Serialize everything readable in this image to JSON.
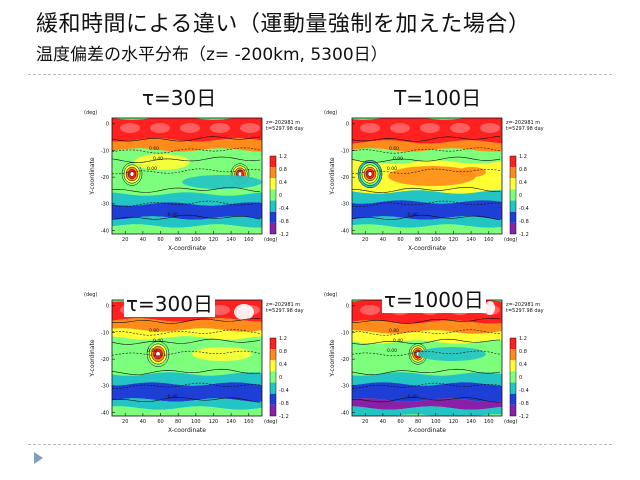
{
  "slide": {
    "title": "緩和時間による違い（運動量強制を加えた場合）",
    "subtitle": "温度偏差の水平分布（z= -200km, 5300日）",
    "bullet_color": "#7f9fc2"
  },
  "colormap": {
    "levels": [
      "1.2",
      "0.8",
      "0.4",
      "0",
      "-0.4",
      "-0.8",
      "-1.2"
    ],
    "colors": [
      "#ff2020",
      "#ff8c1a",
      "#ffff33",
      "#7dff7d",
      "#22c4c4",
      "#1d3fd6",
      "#8a1fa8"
    ]
  },
  "panels": [
    {
      "label": "τ=30日",
      "info": [
        "z=-202981 m",
        "t=5297.98 day"
      ],
      "xlabel": "X-coordinate",
      "ylabel": "Y-coordinate",
      "unit": "(deg)",
      "xticks": [
        "20",
        "40",
        "60",
        "80",
        "100",
        "120",
        "140",
        "160"
      ],
      "yticks": [
        "0",
        "-10",
        "-20",
        "-30",
        "-40"
      ],
      "contour_labels": [
        "0.60",
        "0.40",
        "0.00",
        "-0.40"
      ],
      "features": [
        "warm-polar-band",
        "vortex-x30",
        "vortex-x140",
        "cold-band-y-30"
      ]
    },
    {
      "label": "T=100日",
      "info": [
        "z=-202981 m",
        "t=5297.98 day"
      ],
      "xlabel": "X-coordinate",
      "ylabel": "Y-coordinate",
      "unit": "(deg)",
      "xticks": [
        "20",
        "40",
        "60",
        "80",
        "100",
        "120",
        "140",
        "160"
      ],
      "yticks": [
        "0",
        "-10",
        "-20",
        "-30",
        "-40"
      ],
      "contour_labels": [
        "0.60",
        "0.00",
        "0.00",
        "-0.40"
      ],
      "features": [
        "warm-polar-band",
        "strong-vortex-x20",
        "warm-belt-y-20",
        "cold-band-y-30"
      ]
    },
    {
      "label": "τ=300日",
      "info": [
        "z=-202981 m",
        "t=5297.98 day"
      ],
      "xlabel": "X-coordinate",
      "ylabel": "Y-coordinate",
      "unit": "(deg)",
      "xticks": [
        "20",
        "40",
        "60",
        "80",
        "100",
        "120",
        "140",
        "160"
      ],
      "yticks": [
        "0",
        "-10",
        "-20",
        "-30",
        "-40"
      ],
      "contour_labels": [
        "0.80",
        "0.40",
        "0.00",
        "-0.40"
      ],
      "features": [
        "warm-polar-band",
        "vortex-x50",
        "cold-band-y-30"
      ]
    },
    {
      "label": "τ=1000日",
      "info": [
        "z=-202981 m",
        "t=5297.98 day"
      ],
      "xlabel": "X-coordinate",
      "ylabel": "Y-coordinate",
      "unit": "(deg)",
      "xticks": [
        "20",
        "40",
        "60",
        "80",
        "100",
        "120",
        "140",
        "160"
      ],
      "yticks": [
        "0",
        "-10",
        "-20",
        "-30",
        "-40"
      ],
      "contour_labels": [
        "0.80",
        "0.40",
        "0.00",
        "-0.40"
      ],
      "features": [
        "warm-polar-band",
        "vortex-x70",
        "cold-band-y-30"
      ]
    }
  ]
}
